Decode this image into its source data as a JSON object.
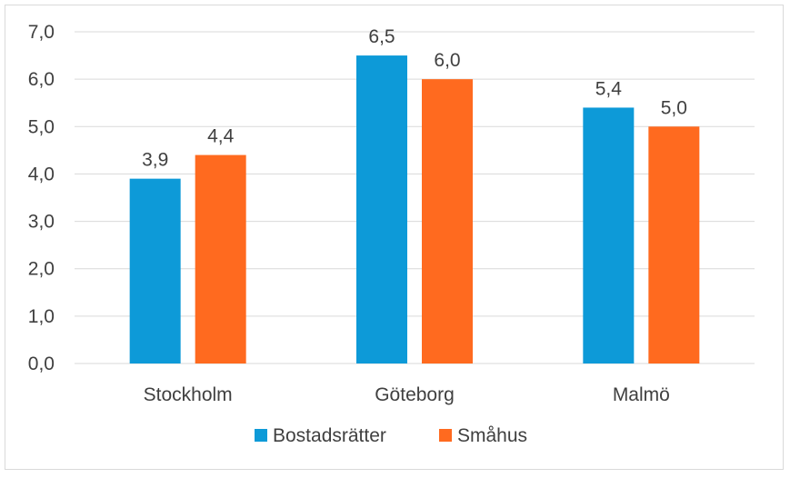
{
  "chart_data": {
    "type": "bar",
    "categories": [
      "Stockholm",
      "Göteborg",
      "Malmö"
    ],
    "series": [
      {
        "name": "Bostadsrätter",
        "values": [
          3.9,
          6.5,
          5.4
        ],
        "labels": [
          "3,9",
          "6,5",
          "5,4"
        ],
        "color": "#0d9ad8"
      },
      {
        "name": "Småhus",
        "values": [
          4.4,
          6.0,
          5.0
        ],
        "labels": [
          "4,4",
          "6,0",
          "5,0"
        ],
        "color": "#ff6a1f"
      }
    ],
    "ylim": [
      0,
      7
    ],
    "yticks": [
      {
        "value": 0,
        "label": "0,0"
      },
      {
        "value": 1,
        "label": "1,0"
      },
      {
        "value": 2,
        "label": "2,0"
      },
      {
        "value": 3,
        "label": "3,0"
      },
      {
        "value": 4,
        "label": "4,0"
      },
      {
        "value": 5,
        "label": "5,0"
      },
      {
        "value": 6,
        "label": "6,0"
      },
      {
        "value": 7,
        "label": "7,0"
      }
    ],
    "grid": true,
    "gridline_color": "#d9d9d9",
    "legend_position": "bottom",
    "title": "",
    "xlabel": "",
    "ylabel": ""
  }
}
